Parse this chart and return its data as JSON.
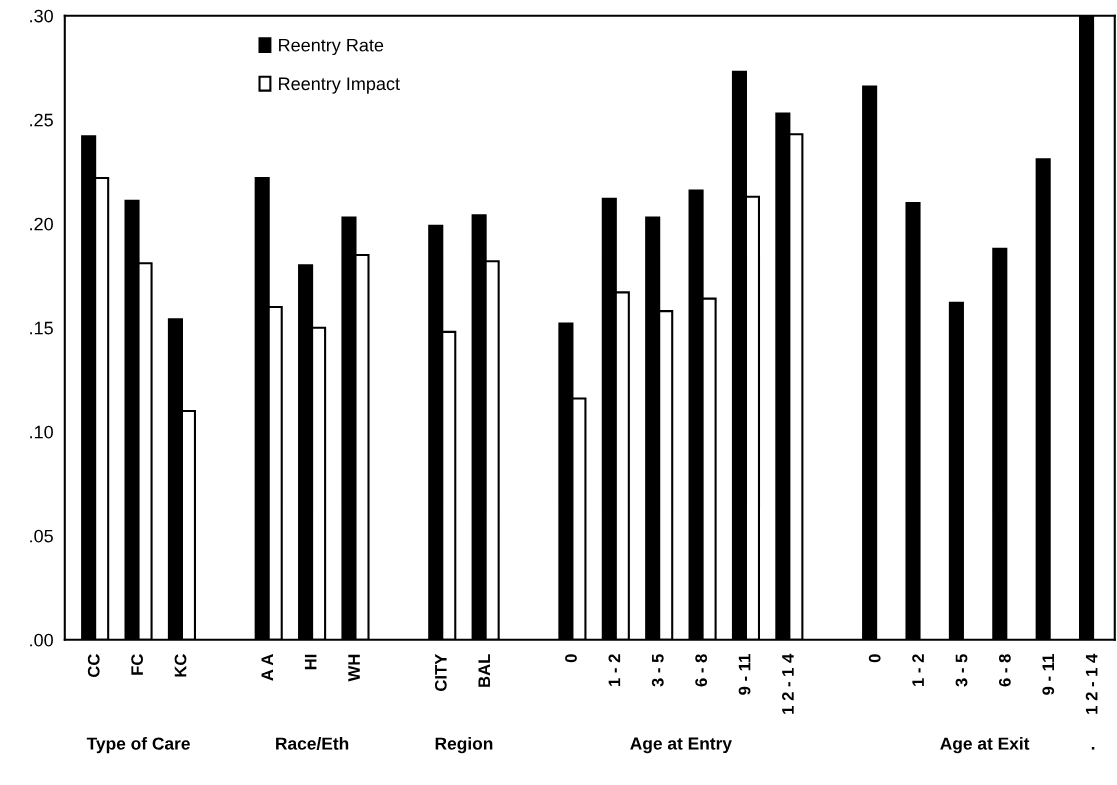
{
  "chart_data": {
    "type": "bar",
    "categories": [
      "CC",
      "FC",
      "KC",
      null,
      "A A",
      "HI",
      "WH",
      null,
      "CITY",
      "BAL",
      null,
      "0",
      "1 - 2",
      "3 - 5",
      "6 - 8",
      "9 - 11",
      "1 2 - 1 4",
      null,
      "0",
      "1 - 2",
      "3 - 5",
      "6 - 8",
      "9 - 11",
      "1 2 - 1 4"
    ],
    "series": [
      {
        "name": "Reentry Rate",
        "color": "#000000",
        "values": [
          0.242,
          0.211,
          0.154,
          null,
          0.222,
          0.18,
          0.203,
          null,
          0.199,
          0.204,
          null,
          0.152,
          0.212,
          0.203,
          0.216,
          0.273,
          0.253,
          null,
          0.266,
          0.21,
          0.162,
          0.188,
          0.231,
          0.3
        ]
      },
      {
        "name": "Reentry Impact",
        "color": "#ffffff",
        "values": [
          0.222,
          0.181,
          0.11,
          null,
          0.16,
          0.15,
          0.185,
          null,
          0.148,
          0.182,
          null,
          0.116,
          0.167,
          0.158,
          0.164,
          0.213,
          0.243,
          null,
          null,
          null,
          null,
          null,
          null,
          null
        ]
      }
    ],
    "ylim": [
      0,
      0.3
    ],
    "yticks": [
      {
        "value": 0,
        "label": ".00"
      },
      {
        "value": 0.05,
        "label": ".05"
      },
      {
        "value": 0.1,
        "label": ".10"
      },
      {
        "value": 0.15,
        "label": ".15"
      },
      {
        "value": 0.2,
        "label": ".20"
      },
      {
        "value": 0.25,
        "label": ".25"
      },
      {
        "value": 0.3,
        "label": ".30"
      }
    ],
    "annotations": [
      "Type of Care",
      "Race/Eth",
      "Region",
      "Age at Entry",
      "Age at Exit",
      "."
    ],
    "legend": "top left",
    "grid": false
  }
}
